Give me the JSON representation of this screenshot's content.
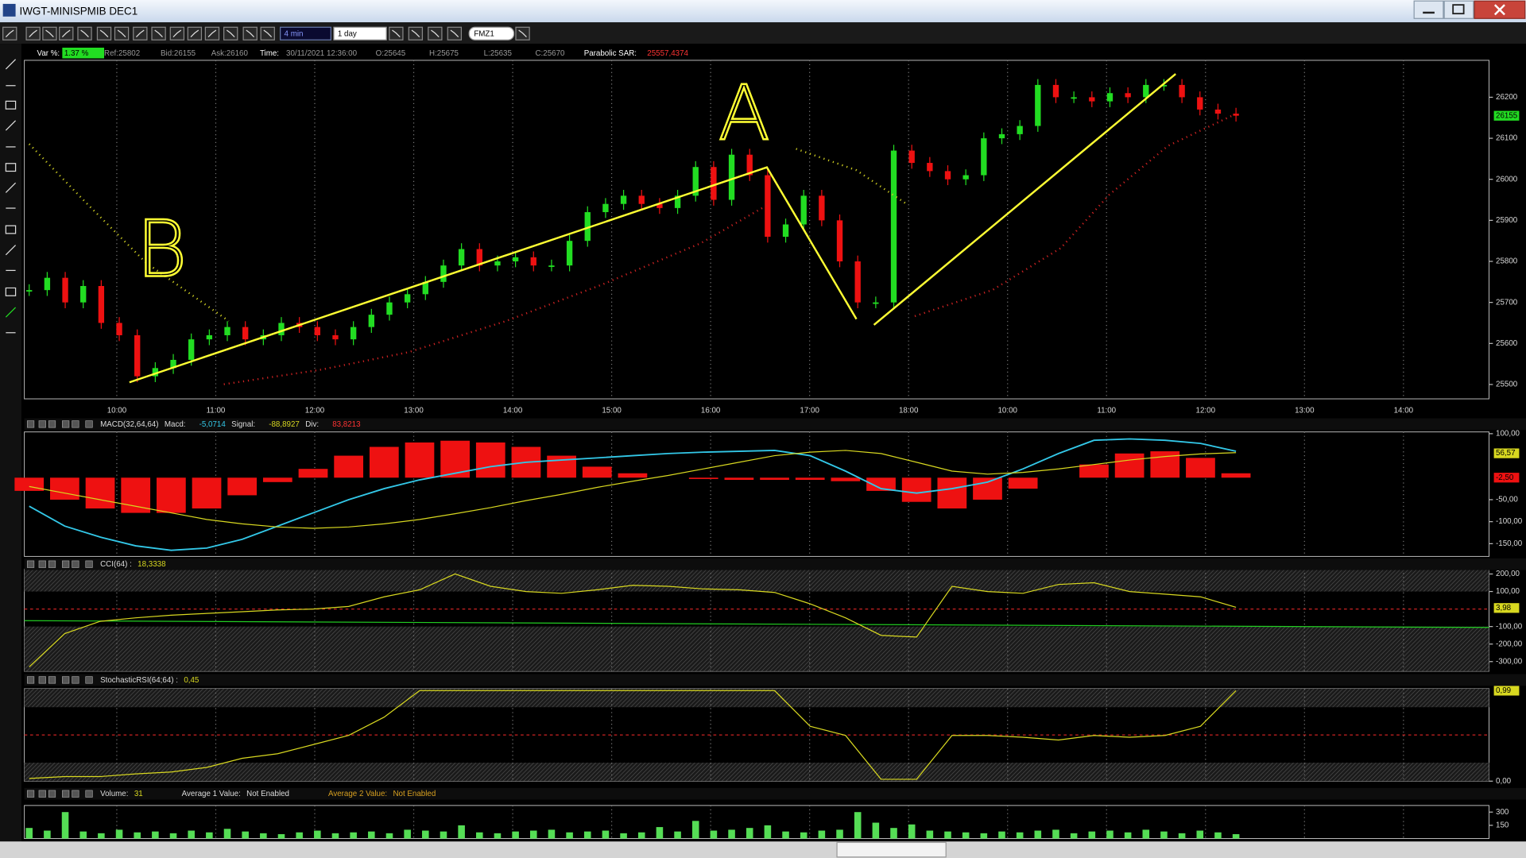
{
  "window": {
    "title": "IWGT-MINISPMIB DEC1"
  },
  "toolbar": {
    "interval": "4 min",
    "period": "1 day",
    "symbol": "FMZ1"
  },
  "info_bar": {
    "items": [
      "Var %:",
      "1.37 %",
      "Ref:25802",
      "Bid:26155",
      "Ask:26160",
      "Time:",
      "30/11/2021 12:36:00",
      "O:25645",
      "H:25675",
      "L:25635",
      "C:25670",
      "Parabolic SAR:",
      "25557,4374"
    ]
  },
  "annotations": [
    "B",
    "A"
  ],
  "chart_data": [
    {
      "type": "candlestick",
      "x_labels": [
        "10:00",
        "11:00",
        "12:00",
        "13:00",
        "14:00",
        "15:00",
        "16:00",
        "17:00",
        "18:00",
        "10:00",
        "11:00",
        "12:00",
        "13:00",
        "14:00"
      ],
      "values": [
        25730,
        25760,
        25700,
        25740,
        25650,
        25620,
        25520,
        25540,
        25560,
        25610,
        25620,
        25640,
        25610,
        25620,
        25650,
        25640,
        25620,
        25610,
        25640,
        25670,
        25700,
        25720,
        25750,
        25790,
        25830,
        25790,
        25800,
        25810,
        25790,
        25790,
        25850,
        25920,
        25940,
        25960,
        25940,
        25930,
        25960,
        26030,
        25950,
        26060,
        26010,
        25860,
        25890,
        25960,
        25900,
        25800,
        25700,
        25700,
        26070,
        26040,
        26020,
        26000,
        26010,
        26100,
        26110,
        26130,
        26230,
        26200,
        26200,
        26190,
        26210,
        26200,
        26230,
        26230,
        26200,
        26170,
        26160,
        26155
      ],
      "color_up": "#22dd22",
      "color_down": "#ee1111",
      "ylim": [
        25465,
        26290
      ],
      "yticks": [
        25500,
        25600,
        25700,
        25800,
        25900,
        26000,
        26100,
        26200
      ],
      "tags": [
        "26155"
      ]
    },
    {
      "type": "macd",
      "title": "MACD(32,64,64)",
      "legend": [
        "Macd:",
        "-5,0714",
        "Signal:",
        "-88,8927",
        "Div:",
        "83,8213"
      ],
      "histogram": [
        -30,
        -50,
        -70,
        -80,
        -80,
        -70,
        -40,
        -10,
        20,
        50,
        70,
        80,
        84,
        80,
        70,
        50,
        25,
        10,
        0,
        -3,
        -5,
        -5,
        -5,
        -8,
        -30,
        -55,
        -70,
        -50,
        -25,
        0,
        30,
        55,
        60,
        45,
        10
      ],
      "macd": [
        -65,
        -110,
        -135,
        -155,
        -165,
        -160,
        -140,
        -110,
        -80,
        -50,
        -25,
        -5,
        10,
        25,
        35,
        40,
        45,
        50,
        55,
        58,
        60,
        62,
        50,
        15,
        -25,
        -35,
        -25,
        -10,
        20,
        55,
        85,
        88,
        85,
        78,
        60
      ],
      "signal": [
        -20,
        -35,
        -50,
        -65,
        -80,
        -95,
        -105,
        -112,
        -115,
        -112,
        -105,
        -95,
        -82,
        -68,
        -52,
        -38,
        -22,
        -8,
        5,
        20,
        35,
        50,
        58,
        62,
        55,
        35,
        15,
        8,
        12,
        20,
        30,
        40,
        48,
        54,
        57
      ],
      "histogram_color": "#ee1111",
      "macd_color": "#33c8e8",
      "signal_color": "#d8d820",
      "ylim": [
        -179,
        104
      ],
      "yticks": [
        {
          "value": 100,
          "label": "100,00"
        },
        {
          "value": -50,
          "label": "-50,00"
        },
        {
          "value": -100,
          "label": "-100,00"
        },
        {
          "value": -150,
          "label": "-150,00"
        }
      ],
      "tags": [
        "56,57",
        "-2,50"
      ]
    },
    {
      "type": "line",
      "title": "CCI(64) :",
      "legend": [
        "18,3338"
      ],
      "values": [
        -330,
        -140,
        -70,
        -50,
        -35,
        -25,
        -15,
        -5,
        0,
        15,
        70,
        110,
        200,
        130,
        100,
        90,
        110,
        135,
        130,
        115,
        110,
        95,
        30,
        -50,
        -150,
        -160,
        130,
        100,
        90,
        140,
        150,
        100,
        85,
        70,
        10
      ],
      "color": "#d8d820",
      "ylim": [
        -355,
        228
      ],
      "yticks": [
        {
          "value": 200,
          "label": "200,00"
        },
        {
          "value": 100,
          "label": "100,00"
        },
        {
          "value": -100,
          "label": "-100,00"
        },
        {
          "value": -200,
          "label": "-200,00"
        },
        {
          "value": -300,
          "label": "-300,00"
        }
      ],
      "tags": [
        "3,98"
      ]
    },
    {
      "type": "line",
      "title": "StochasticRSI(64;64) :",
      "legend": [
        "0,45"
      ],
      "values": [
        0.03,
        0.05,
        0.05,
        0.08,
        0.1,
        0.15,
        0.25,
        0.3,
        0.4,
        0.5,
        0.7,
        0.99,
        0.99,
        0.99,
        0.99,
        0.99,
        0.99,
        0.99,
        0.99,
        0.99,
        0.99,
        0.99,
        0.6,
        0.5,
        0.02,
        0.02,
        0.5,
        0.5,
        0.48,
        0.45,
        0.5,
        0.48,
        0.5,
        0.6,
        0.99
      ],
      "color": "#d8d820",
      "ylim": [
        0,
        1.01
      ],
      "yticks": [
        {
          "value": 0,
          "label": "0,00"
        }
      ],
      "tags": [
        "0,99"
      ]
    },
    {
      "type": "bar",
      "title": "Volume:",
      "legend": [
        "31",
        "Average 1 Value:",
        "Not Enabled",
        "Average 2 Value:",
        "Not Enabled"
      ],
      "values": [
        120,
        90,
        300,
        80,
        60,
        100,
        70,
        80,
        60,
        90,
        70,
        110,
        80,
        60,
        50,
        70,
        90,
        60,
        70,
        80,
        60,
        100,
        90,
        80,
        150,
        70,
        60,
        80,
        90,
        100,
        70,
        80,
        90,
        60,
        70,
        130,
        80,
        200,
        90,
        100,
        120,
        150,
        80,
        70,
        90,
        100,
        300,
        180,
        120,
        160,
        90,
        80,
        70,
        60,
        80,
        70,
        90,
        100,
        60,
        80,
        90,
        70,
        100,
        80,
        60,
        90,
        70,
        50
      ],
      "color": "#55dd55",
      "ylim": [
        0,
        375
      ],
      "yticks": [
        150,
        300
      ]
    }
  ]
}
